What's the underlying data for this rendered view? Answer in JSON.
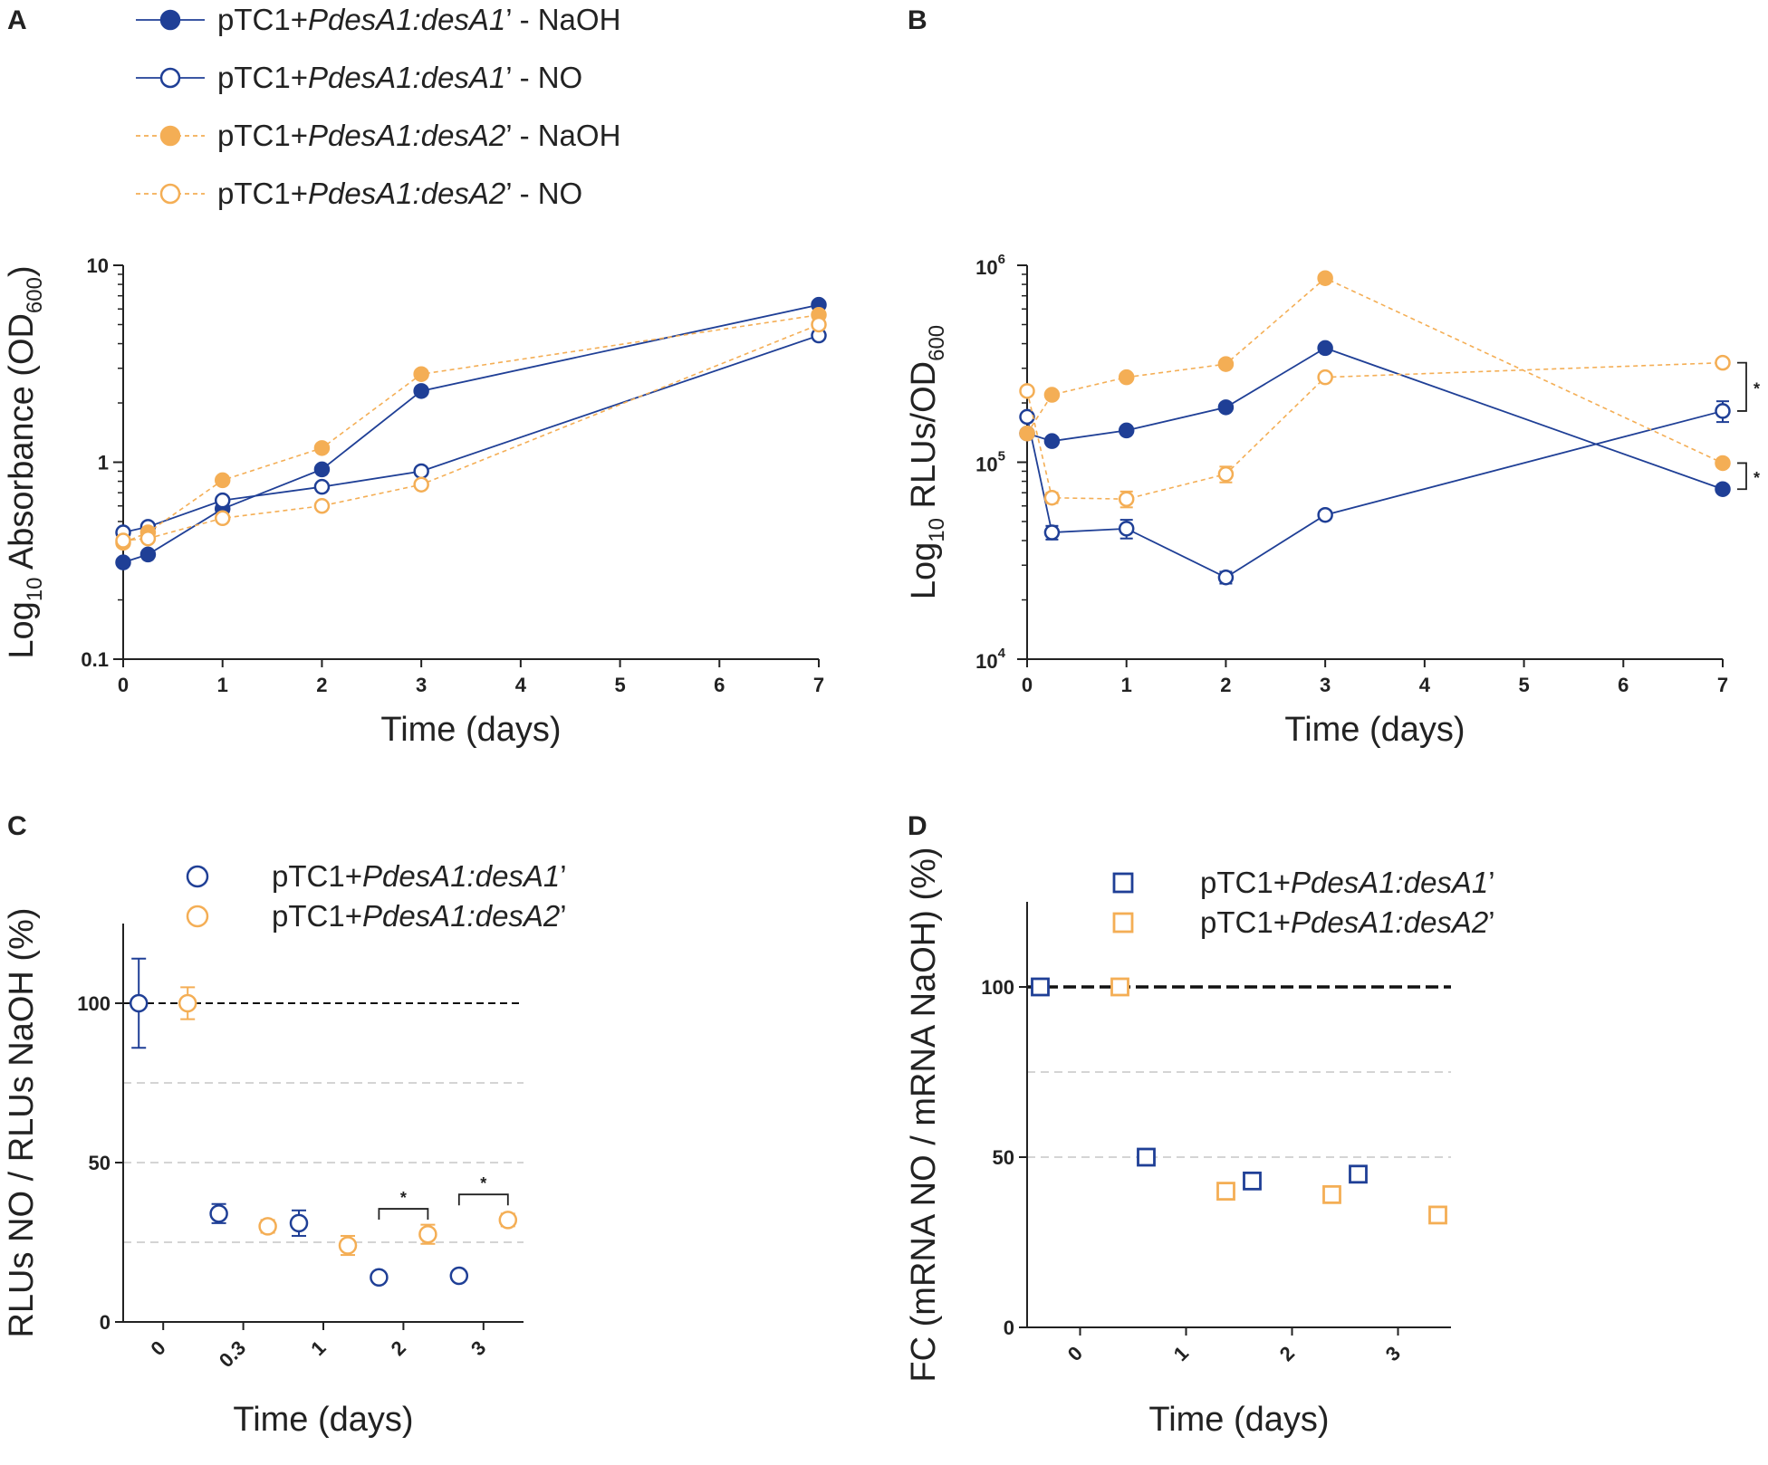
{
  "colors": {
    "blue": "#1F3F96",
    "orange": "#F4AE55",
    "axis": "#222222",
    "grid": "#d4d4d4",
    "ref": "#111111"
  },
  "chart_data": [
    {
      "panel": "A",
      "type": "line",
      "yscale": "log10",
      "xlabel": "Time (days)",
      "ylabel": {
        "prefix": "Log",
        "sub": "10",
        "main": " Absorbance (OD",
        "sub2": "600",
        "suffix": ")"
      },
      "xlim": [
        0,
        7
      ],
      "ylim": [
        0.1,
        10
      ],
      "xticks": [
        0,
        1,
        2,
        3,
        4,
        5,
        6,
        7
      ],
      "yticks": [
        {
          "value": 0.1,
          "label": "0.1"
        },
        {
          "value": 1,
          "label": "1"
        },
        {
          "value": 10,
          "label": "10"
        }
      ],
      "x": [
        0,
        0.25,
        1,
        2,
        3,
        7
      ],
      "legend": {
        "position": "top-left",
        "items": [
          {
            "pre": "pTC1+",
            "italic": "PdesA1:desA1",
            "post": "’ - NaOH"
          },
          {
            "pre": "pTC1+",
            "italic": "PdesA1:desA1",
            "post": "’ - NO"
          },
          {
            "pre": "pTC1+",
            "italic": "PdesA1:desA2",
            "post": "’ - NaOH"
          },
          {
            "pre": "pTC1+",
            "italic": "PdesA1:desA2",
            "post": "’ - NO"
          }
        ]
      },
      "series": [
        {
          "name": "pTC1+PdesA1:desA1’ - NaOH",
          "color": "blue",
          "filled": true,
          "dashed": false,
          "values": [
            0.31,
            0.34,
            0.58,
            0.92,
            2.3,
            6.3
          ]
        },
        {
          "name": "pTC1+PdesA1:desA1’ - NO",
          "color": "blue",
          "filled": false,
          "dashed": false,
          "values": [
            0.44,
            0.47,
            0.64,
            0.75,
            0.9,
            4.4
          ]
        },
        {
          "name": "pTC1+PdesA1:desA2’ - NaOH",
          "color": "orange",
          "filled": true,
          "dashed": true,
          "values": [
            0.39,
            0.44,
            0.81,
            1.18,
            2.8,
            5.6
          ]
        },
        {
          "name": "pTC1+PdesA1:desA2’ - NO",
          "color": "orange",
          "filled": false,
          "dashed": true,
          "values": [
            0.4,
            0.41,
            0.52,
            0.6,
            0.77,
            5.0
          ]
        }
      ]
    },
    {
      "panel": "B",
      "type": "line",
      "yscale": "log10",
      "xlabel": "Time (days)",
      "ylabel": {
        "prefix": "Log",
        "sub": "10",
        "main": " RLUs/OD",
        "sub2": "600",
        "suffix": ""
      },
      "xlim": [
        0,
        7
      ],
      "ylim": [
        10000,
        1000000
      ],
      "xticks": [
        0,
        1,
        2,
        3,
        4,
        5,
        6,
        7
      ],
      "yticks": [
        {
          "value": 10000,
          "base": "10",
          "exp": "4"
        },
        {
          "value": 100000,
          "base": "10",
          "exp": "5"
        },
        {
          "value": 1000000,
          "base": "10",
          "exp": "6"
        }
      ],
      "x": [
        0,
        0.25,
        1,
        2,
        3,
        7
      ],
      "series": [
        {
          "name": "pTC1+PdesA1:desA1’ - NaOH",
          "color": "blue",
          "filled": true,
          "dashed": false,
          "values": [
            140000,
            128000,
            145000,
            190000,
            380000,
            73000
          ]
        },
        {
          "name": "pTC1+PdesA1:desA1’ - NO",
          "color": "blue",
          "filled": false,
          "dashed": false,
          "values": [
            170000,
            44000,
            46000,
            26000,
            54000,
            182000
          ],
          "errors": [
            null,
            3500,
            5000,
            1800,
            null,
            22000
          ]
        },
        {
          "name": "pTC1+PdesA1:desA2’ - NaOH",
          "color": "orange",
          "filled": true,
          "dashed": true,
          "values": [
            140000,
            220000,
            270000,
            315000,
            860000,
            99000
          ]
        },
        {
          "name": "pTC1+PdesA1:desA2’ - NO",
          "color": "orange",
          "filled": false,
          "dashed": true,
          "values": [
            230000,
            66000,
            65000,
            87000,
            270000,
            320000
          ],
          "errors": [
            null,
            4000,
            6000,
            8000,
            null,
            null
          ]
        }
      ],
      "annotations": [
        {
          "text": "*",
          "between": "day 7 open markers"
        },
        {
          "text": "*",
          "between": "day 7 filled markers"
        }
      ]
    },
    {
      "panel": "C",
      "type": "scatter",
      "xlabel": "Time (days)",
      "ylabel": "RLUs NO / RLUs NaOH (%)",
      "ylim": [
        0,
        125
      ],
      "categories": [
        "0",
        "0.3",
        "1",
        "2",
        "3"
      ],
      "yticks": [
        0,
        50,
        100
      ],
      "reference_line": 100,
      "gridlines": [
        25,
        50,
        75
      ],
      "legend": {
        "position": "top-left",
        "items": [
          {
            "pre": "pTC1+",
            "italic": "PdesA1:desA1",
            "post": "’"
          },
          {
            "pre": "pTC1+",
            "italic": "PdesA1:desA2",
            "post": "’"
          }
        ]
      },
      "series": [
        {
          "name": "pTC1+PdesA1:desA1’",
          "color": "blue",
          "values": [
            100,
            34,
            31,
            14,
            14.5
          ],
          "errors": [
            14,
            3,
            4,
            0,
            1
          ]
        },
        {
          "name": "pTC1+PdesA1:desA2’",
          "color": "orange",
          "values": [
            100,
            30,
            24,
            27.5,
            32
          ],
          "errors": [
            5,
            2,
            3,
            3,
            2
          ]
        }
      ],
      "annotations": [
        {
          "text": "*",
          "category": "2"
        },
        {
          "text": "*",
          "category": "3"
        }
      ]
    },
    {
      "panel": "D",
      "type": "scatter",
      "xlabel": "Time (days)",
      "ylabel": "FC (mRNA NO /  mRNA NaOH) (%)",
      "ylim": [
        0,
        125
      ],
      "categories": [
        "0",
        "1",
        "2",
        "3"
      ],
      "yticks": [
        0,
        50,
        100
      ],
      "reference_line": 100,
      "gridlines": [
        50,
        75
      ],
      "legend": {
        "position": "top-left",
        "items": [
          {
            "pre": "pTC1+",
            "italic": "PdesA1:desA1",
            "post": "’"
          },
          {
            "pre": "pTC1+",
            "italic": "PdesA1:desA2",
            "post": "’"
          }
        ]
      },
      "series": [
        {
          "name": "pTC1+PdesA1:desA1’",
          "color": "blue",
          "values": [
            100,
            50,
            43,
            45
          ]
        },
        {
          "name": "pTC1+PdesA1:desA2’",
          "color": "orange",
          "values": [
            100,
            40,
            39,
            33
          ]
        }
      ]
    }
  ]
}
